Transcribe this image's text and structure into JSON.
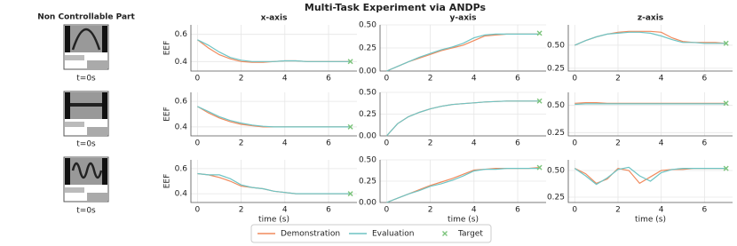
{
  "title": "Multi-Task Experiment via ANDPs",
  "left_panel": {
    "title": "Non Controllable Part",
    "captions": [
      "t=0s",
      "t=0s",
      "t=0s"
    ]
  },
  "chart_data": [
    {
      "type": "line",
      "title": "x-axis",
      "ylabel": "EEF",
      "x": [
        0,
        0.5,
        1,
        1.5,
        2,
        2.5,
        3,
        3.5,
        4,
        4.5,
        5,
        5.5,
        6,
        6.5,
        7
      ],
      "xlim": [
        -0.3,
        7.3
      ],
      "xticks": [
        0,
        2,
        4,
        6
      ],
      "ylim": [
        0.33,
        0.67
      ],
      "yticks": [
        {
          "value": 0.4,
          "label": "0.4"
        },
        {
          "value": 0.6,
          "label": "0.6"
        }
      ],
      "grid": true,
      "series": [
        {
          "name": "Demonstration",
          "color": "#f08a5d",
          "values": [
            0.56,
            0.5,
            0.45,
            0.42,
            0.4,
            0.395,
            0.395,
            0.4,
            0.405,
            0.405,
            0.4,
            0.4,
            0.4,
            0.4,
            0.4
          ]
        },
        {
          "name": "Evaluation",
          "color": "#6ec4c4",
          "values": [
            0.56,
            0.52,
            0.47,
            0.43,
            0.41,
            0.4,
            0.4,
            0.4,
            0.405,
            0.405,
            0.4,
            0.4,
            0.4,
            0.4,
            0.4
          ]
        },
        {
          "name": "Target",
          "color": "#7cc47c",
          "x": [
            7
          ],
          "values": [
            0.4
          ]
        }
      ]
    },
    {
      "type": "line",
      "title": "y-axis",
      "x": [
        0,
        0.5,
        1,
        1.5,
        2,
        2.5,
        3,
        3.5,
        4,
        4.5,
        5,
        5.5,
        6,
        6.5,
        7
      ],
      "xlim": [
        -0.3,
        7.3
      ],
      "xticks": [
        0,
        2,
        4,
        6
      ],
      "ylim": [
        0,
        0.5
      ],
      "yticks": [
        {
          "value": 0,
          "label": "0.00"
        },
        {
          "value": 0.25,
          "label": "0.25"
        },
        {
          "value": 0.5,
          "label": "0.50"
        }
      ],
      "grid": true,
      "series": [
        {
          "name": "Demonstration",
          "color": "#f08a5d",
          "values": [
            0,
            0.05,
            0.1,
            0.14,
            0.18,
            0.22,
            0.25,
            0.28,
            0.33,
            0.38,
            0.39,
            0.4,
            0.4,
            0.4,
            0.4
          ]
        },
        {
          "name": "Evaluation",
          "color": "#6ec4c4",
          "values": [
            0,
            0.05,
            0.1,
            0.15,
            0.19,
            0.23,
            0.26,
            0.3,
            0.36,
            0.39,
            0.4,
            0.4,
            0.4,
            0.4,
            0.4
          ]
        },
        {
          "name": "Target",
          "color": "#7cc47c",
          "x": [
            7
          ],
          "values": [
            0.41
          ]
        }
      ]
    },
    {
      "type": "line",
      "title": "z-axis",
      "x": [
        0,
        0.5,
        1,
        1.5,
        2,
        2.5,
        3,
        3.5,
        4,
        4.5,
        5,
        5.5,
        6,
        6.5,
        7
      ],
      "xlim": [
        -0.3,
        7.3
      ],
      "xticks": [
        0,
        2,
        4,
        6
      ],
      "ylim": [
        0.22,
        0.72
      ],
      "yticks": [
        {
          "value": 0.25,
          "label": "0.25"
        },
        {
          "value": 0.5,
          "label": "0.50"
        }
      ],
      "grid": true,
      "series": [
        {
          "name": "Demonstration",
          "color": "#f08a5d",
          "values": [
            0.5,
            0.55,
            0.59,
            0.62,
            0.64,
            0.65,
            0.65,
            0.65,
            0.64,
            0.58,
            0.54,
            0.53,
            0.53,
            0.53,
            0.52
          ]
        },
        {
          "name": "Evaluation",
          "color": "#6ec4c4",
          "values": [
            0.5,
            0.55,
            0.59,
            0.62,
            0.63,
            0.64,
            0.64,
            0.63,
            0.6,
            0.56,
            0.53,
            0.53,
            0.52,
            0.52,
            0.52
          ]
        },
        {
          "name": "Target",
          "color": "#7cc47c",
          "x": [
            7
          ],
          "values": [
            0.52
          ]
        }
      ]
    },
    {
      "type": "line",
      "ylabel": "EEF",
      "x": [
        0,
        0.5,
        1,
        1.5,
        2,
        2.5,
        3,
        3.5,
        4,
        4.5,
        5,
        5.5,
        6,
        6.5,
        7
      ],
      "xlim": [
        -0.3,
        7.3
      ],
      "xticks": [
        0,
        2,
        4,
        6
      ],
      "ylim": [
        0.33,
        0.67
      ],
      "yticks": [
        {
          "value": 0.4,
          "label": "0.4"
        },
        {
          "value": 0.6,
          "label": "0.6"
        }
      ],
      "grid": true,
      "series": [
        {
          "name": "Demonstration",
          "color": "#f08a5d",
          "values": [
            0.56,
            0.51,
            0.47,
            0.44,
            0.42,
            0.41,
            0.4,
            0.4,
            0.4,
            0.4,
            0.4,
            0.4,
            0.4,
            0.4,
            0.4
          ]
        },
        {
          "name": "Evaluation",
          "color": "#6ec4c4",
          "values": [
            0.56,
            0.52,
            0.48,
            0.45,
            0.43,
            0.415,
            0.405,
            0.4,
            0.4,
            0.4,
            0.4,
            0.4,
            0.4,
            0.4,
            0.4
          ]
        },
        {
          "name": "Target",
          "color": "#7cc47c",
          "x": [
            7
          ],
          "values": [
            0.4
          ]
        }
      ]
    },
    {
      "type": "line",
      "x": [
        0,
        0.5,
        1,
        1.5,
        2,
        2.5,
        3,
        3.5,
        4,
        4.5,
        5,
        5.5,
        6,
        6.5,
        7
      ],
      "xlim": [
        -0.3,
        7.3
      ],
      "xticks": [
        0,
        2,
        4,
        6
      ],
      "ylim": [
        0,
        0.5
      ],
      "yticks": [
        {
          "value": 0,
          "label": "0.00"
        },
        {
          "value": 0.25,
          "label": "0.25"
        },
        {
          "value": 0.5,
          "label": "0.50"
        }
      ],
      "grid": true,
      "series": [
        {
          "name": "Demonstration",
          "color": "#f08a5d",
          "values": [
            0,
            0.14,
            0.22,
            0.27,
            0.31,
            0.34,
            0.36,
            0.37,
            0.38,
            0.39,
            0.395,
            0.4,
            0.4,
            0.4,
            0.4
          ]
        },
        {
          "name": "Evaluation",
          "color": "#6ec4c4",
          "values": [
            0,
            0.14,
            0.22,
            0.27,
            0.31,
            0.34,
            0.36,
            0.37,
            0.38,
            0.39,
            0.395,
            0.4,
            0.4,
            0.4,
            0.4
          ]
        },
        {
          "name": "Target",
          "color": "#7cc47c",
          "x": [
            7
          ],
          "values": [
            0.4
          ]
        }
      ]
    },
    {
      "type": "line",
      "x": [
        0,
        0.5,
        1,
        1.5,
        2,
        2.5,
        3,
        3.5,
        4,
        4.5,
        5,
        5.5,
        6,
        6.5,
        7
      ],
      "xlim": [
        -0.3,
        7.3
      ],
      "xticks": [
        0,
        2,
        4,
        6
      ],
      "ylim": [
        0.22,
        0.62
      ],
      "yticks": [
        {
          "value": 0.25,
          "label": "0.25"
        },
        {
          "value": 0.5,
          "label": "0.50"
        }
      ],
      "grid": true,
      "series": [
        {
          "name": "Demonstration",
          "color": "#f08a5d",
          "values": [
            0.52,
            0.525,
            0.525,
            0.52,
            0.52,
            0.52,
            0.52,
            0.52,
            0.52,
            0.52,
            0.52,
            0.52,
            0.52,
            0.52,
            0.52
          ]
        },
        {
          "name": "Evaluation",
          "color": "#6ec4c4",
          "values": [
            0.51,
            0.515,
            0.515,
            0.515,
            0.515,
            0.515,
            0.515,
            0.515,
            0.515,
            0.515,
            0.515,
            0.515,
            0.515,
            0.515,
            0.515
          ]
        },
        {
          "name": "Target",
          "color": "#7cc47c",
          "x": [
            7
          ],
          "values": [
            0.52
          ]
        }
      ]
    },
    {
      "type": "line",
      "ylabel": "EEF",
      "xlabel": "time (s)",
      "x": [
        0,
        0.5,
        1,
        1.5,
        2,
        2.5,
        3,
        3.5,
        4,
        4.5,
        5,
        5.5,
        6,
        6.5,
        7
      ],
      "xlim": [
        -0.3,
        7.3
      ],
      "xticks": [
        0,
        2,
        4,
        6
      ],
      "ylim": [
        0.33,
        0.67
      ],
      "yticks": [
        {
          "value": 0.4,
          "label": "0.4"
        },
        {
          "value": 0.6,
          "label": "0.6"
        }
      ],
      "grid": true,
      "series": [
        {
          "name": "Demonstration",
          "color": "#f08a5d",
          "values": [
            0.56,
            0.55,
            0.53,
            0.5,
            0.46,
            0.45,
            0.44,
            0.42,
            0.41,
            0.4,
            0.4,
            0.4,
            0.4,
            0.4,
            0.4
          ]
        },
        {
          "name": "Evaluation",
          "color": "#6ec4c4",
          "values": [
            0.56,
            0.55,
            0.55,
            0.52,
            0.47,
            0.45,
            0.44,
            0.42,
            0.41,
            0.4,
            0.4,
            0.4,
            0.4,
            0.4,
            0.4
          ]
        },
        {
          "name": "Target",
          "color": "#7cc47c",
          "x": [
            7
          ],
          "values": [
            0.4
          ]
        }
      ]
    },
    {
      "type": "line",
      "xlabel": "time (s)",
      "x": [
        0,
        0.5,
        1,
        1.5,
        2,
        2.5,
        3,
        3.5,
        4,
        4.5,
        5,
        5.5,
        6,
        6.5,
        7
      ],
      "xlim": [
        -0.3,
        7.3
      ],
      "xticks": [
        0,
        2,
        4,
        6
      ],
      "ylim": [
        0,
        0.5
      ],
      "yticks": [
        {
          "value": 0,
          "label": "0.00"
        },
        {
          "value": 0.25,
          "label": "0.25"
        },
        {
          "value": 0.5,
          "label": "0.50"
        }
      ],
      "grid": true,
      "series": [
        {
          "name": "Demonstration",
          "color": "#f08a5d",
          "values": [
            0,
            0.05,
            0.1,
            0.15,
            0.2,
            0.24,
            0.28,
            0.33,
            0.38,
            0.39,
            0.4,
            0.4,
            0.4,
            0.4,
            0.41
          ]
        },
        {
          "name": "Evaluation",
          "color": "#6ec4c4",
          "values": [
            0,
            0.05,
            0.1,
            0.14,
            0.19,
            0.22,
            0.26,
            0.31,
            0.37,
            0.39,
            0.39,
            0.4,
            0.4,
            0.4,
            0.4
          ]
        },
        {
          "name": "Target",
          "color": "#7cc47c",
          "x": [
            7
          ],
          "values": [
            0.41
          ]
        }
      ]
    },
    {
      "type": "line",
      "xlabel": "time (s)",
      "x": [
        0,
        0.5,
        1,
        1.5,
        2,
        2.5,
        3,
        3.5,
        4,
        4.5,
        5,
        5.5,
        6,
        6.5,
        7
      ],
      "xlim": [
        -0.3,
        7.3
      ],
      "xticks": [
        0,
        2,
        4,
        6
      ],
      "ylim": [
        0.2,
        0.6
      ],
      "yticks": [
        {
          "value": 0.25,
          "label": "0.25"
        },
        {
          "value": 0.5,
          "label": "0.50"
        }
      ],
      "grid": true,
      "series": [
        {
          "name": "Demonstration",
          "color": "#f08a5d",
          "values": [
            0.52,
            0.47,
            0.38,
            0.42,
            0.52,
            0.5,
            0.38,
            0.44,
            0.5,
            0.51,
            0.51,
            0.52,
            0.52,
            0.52,
            0.52
          ]
        },
        {
          "name": "Evaluation",
          "color": "#6ec4c4",
          "values": [
            0.52,
            0.45,
            0.37,
            0.43,
            0.51,
            0.53,
            0.45,
            0.4,
            0.48,
            0.51,
            0.52,
            0.52,
            0.52,
            0.52,
            0.52
          ]
        },
        {
          "name": "Target",
          "color": "#7cc47c",
          "x": [
            7
          ],
          "values": [
            0.52
          ]
        }
      ]
    }
  ]
}
